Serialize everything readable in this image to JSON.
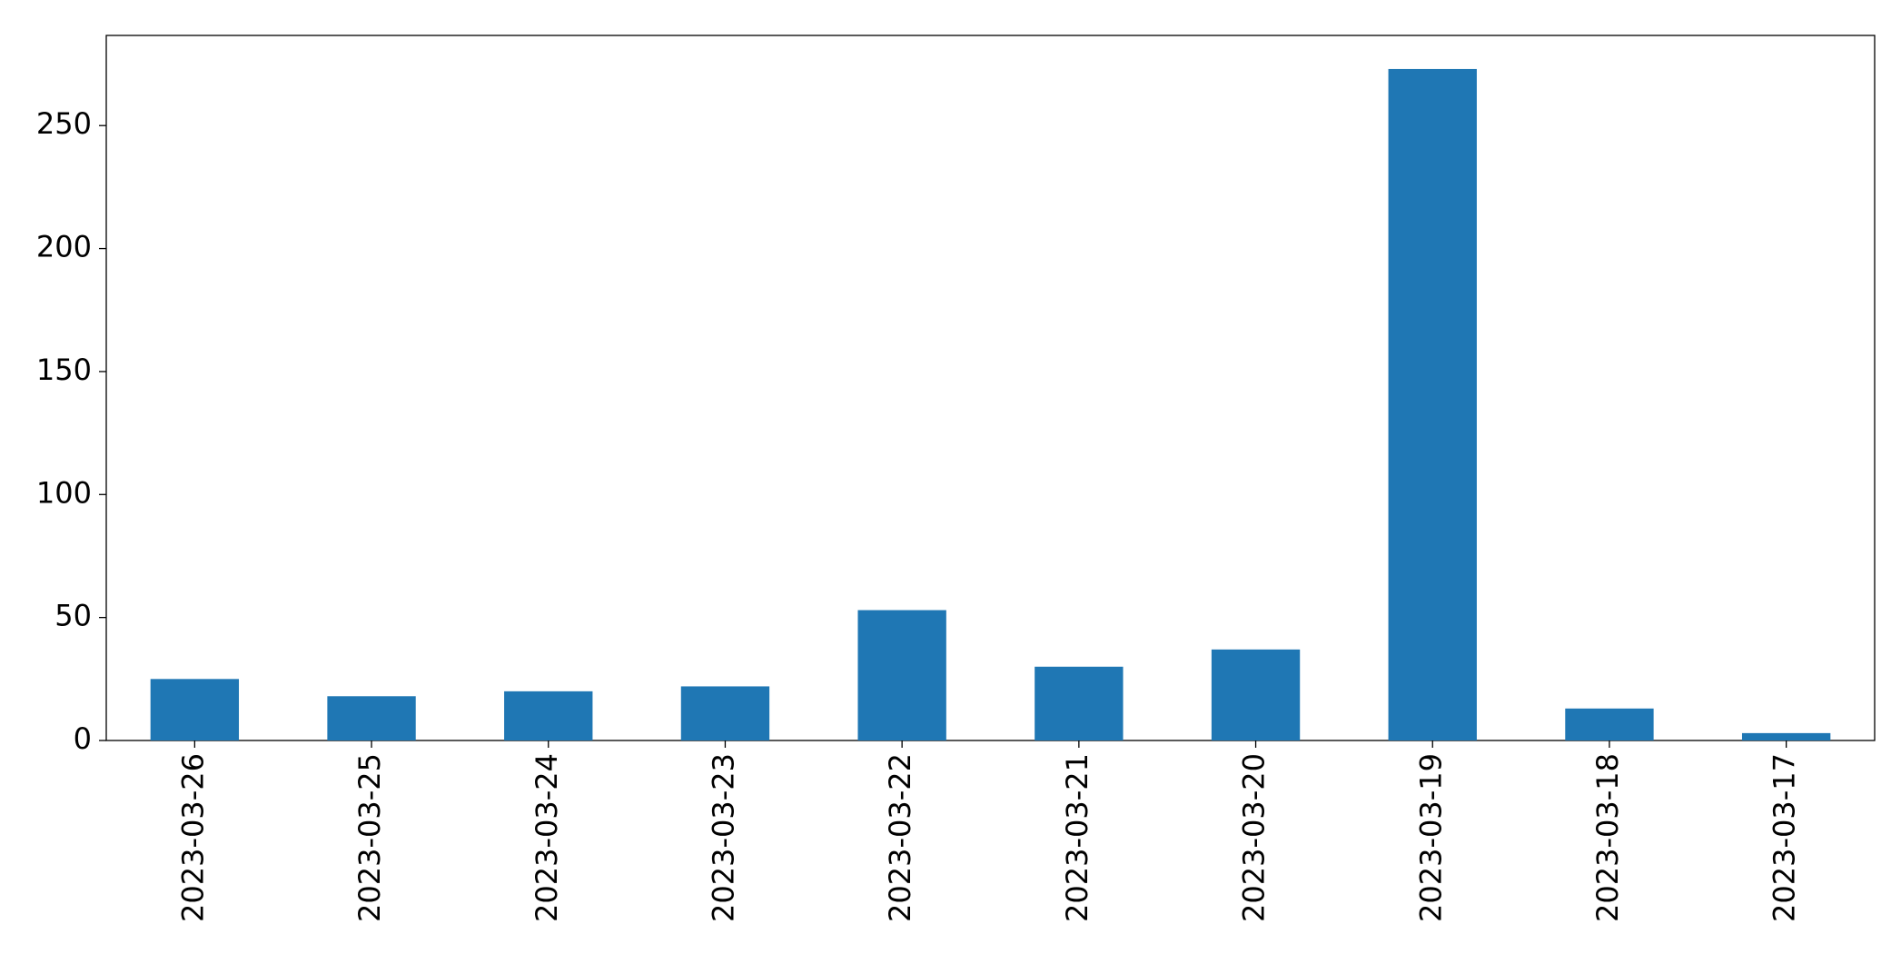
{
  "chart_data": {
    "type": "bar",
    "categories": [
      "2023-03-26",
      "2023-03-25",
      "2023-03-24",
      "2023-03-23",
      "2023-03-22",
      "2023-03-21",
      "2023-03-20",
      "2023-03-19",
      "2023-03-18",
      "2023-03-17"
    ],
    "values": [
      25,
      18,
      20,
      22,
      53,
      30,
      37,
      273,
      13,
      3
    ],
    "color": "#1f77b4",
    "ylim": [
      0,
      286.65
    ],
    "yticks": [
      0,
      50,
      100,
      150,
      200,
      250
    ],
    "grid": false
  }
}
